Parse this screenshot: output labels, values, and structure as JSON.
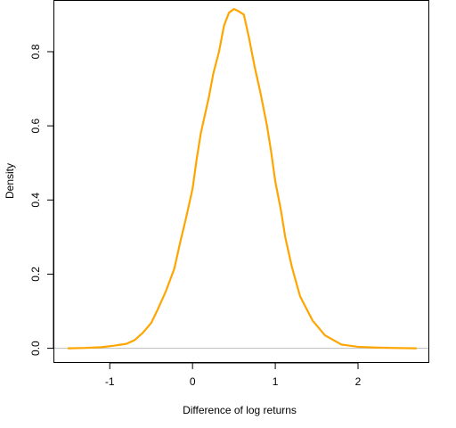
{
  "chart_data": {
    "type": "line",
    "title": "",
    "xlabel": "Difference of log returns",
    "ylabel": "Density",
    "xlim": [
      -1.67,
      2.85
    ],
    "ylim": [
      -0.037,
      0.937
    ],
    "xticks": [
      -1,
      0,
      1,
      2
    ],
    "xtick_labels": [
      "-1",
      "0",
      "1",
      "2"
    ],
    "yticks": [
      0.0,
      0.2,
      0.4,
      0.6,
      0.8
    ],
    "ytick_labels": [
      "0.0",
      "0.2",
      "0.4",
      "0.6",
      "0.8"
    ],
    "grid": false,
    "baseline": 0,
    "colors": {
      "line": "#ffa500",
      "baseline": "#bebebe"
    },
    "series": [
      {
        "x": [
          -1.5,
          -1.3,
          -1.1,
          -0.95,
          -0.8,
          -0.7,
          -0.6,
          -0.5,
          -0.42,
          -0.32,
          -0.22,
          -0.15,
          -0.08,
          0.0,
          0.05,
          0.1,
          0.2,
          0.25,
          0.32,
          0.38,
          0.44,
          0.5,
          0.55,
          0.62,
          0.68,
          0.75,
          0.82,
          0.9,
          0.95,
          1.0,
          1.07,
          1.12,
          1.2,
          1.3,
          1.45,
          1.6,
          1.8,
          2.0,
          2.2,
          2.4,
          2.7
        ],
        "y": [
          0.0,
          0.001,
          0.003,
          0.007,
          0.012,
          0.022,
          0.042,
          0.068,
          0.105,
          0.155,
          0.215,
          0.285,
          0.35,
          0.43,
          0.51,
          0.58,
          0.68,
          0.74,
          0.8,
          0.87,
          0.905,
          0.915,
          0.91,
          0.9,
          0.84,
          0.76,
          0.69,
          0.6,
          0.53,
          0.45,
          0.37,
          0.3,
          0.22,
          0.14,
          0.075,
          0.035,
          0.01,
          0.004,
          0.002,
          0.001,
          0.0
        ]
      }
    ]
  }
}
